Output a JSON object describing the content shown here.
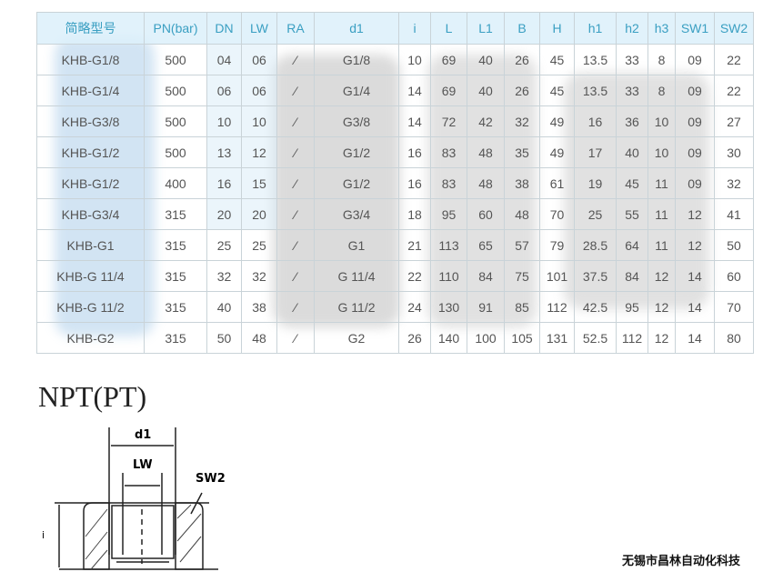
{
  "table": {
    "headers": [
      "简略型号",
      "PN(bar)",
      "DN",
      "LW",
      "RA",
      "d1",
      "i",
      "L",
      "L1",
      "B",
      "H",
      "h1",
      "h2",
      "h3",
      "SW1",
      "SW2"
    ],
    "rows": [
      [
        "KHB-G1/8",
        "500",
        "04",
        "06",
        "⁄",
        "G1/8",
        "10",
        "69",
        "40",
        "26",
        "45",
        "13.5",
        "33",
        "8",
        "09",
        "22"
      ],
      [
        "KHB-G1/4",
        "500",
        "06",
        "06",
        "⁄",
        "G1/4",
        "14",
        "69",
        "40",
        "26",
        "45",
        "13.5",
        "33",
        "8",
        "09",
        "22"
      ],
      [
        "KHB-G3/8",
        "500",
        "10",
        "10",
        "⁄",
        "G3/8",
        "14",
        "72",
        "42",
        "32",
        "49",
        "16",
        "36",
        "10",
        "09",
        "27"
      ],
      [
        "KHB-G1/2",
        "500",
        "13",
        "12",
        "⁄",
        "G1/2",
        "16",
        "83",
        "48",
        "35",
        "49",
        "17",
        "40",
        "10",
        "09",
        "30"
      ],
      [
        "KHB-G1/2",
        "400",
        "16",
        "15",
        "⁄",
        "G1/2",
        "16",
        "83",
        "48",
        "38",
        "61",
        "19",
        "45",
        "11",
        "09",
        "32"
      ],
      [
        "KHB-G3/4",
        "315",
        "20",
        "20",
        "⁄",
        "G3/4",
        "18",
        "95",
        "60",
        "48",
        "70",
        "25",
        "55",
        "11",
        "12",
        "41"
      ],
      [
        "KHB-G1",
        "315",
        "25",
        "25",
        "⁄",
        "G1",
        "21",
        "113",
        "65",
        "57",
        "79",
        "28.5",
        "64",
        "11",
        "12",
        "50"
      ],
      [
        "KHB-G 11/4",
        "315",
        "32",
        "32",
        "⁄",
        "G 11/4",
        "22",
        "110",
        "84",
        "75",
        "101",
        "37.5",
        "84",
        "12",
        "14",
        "60"
      ],
      [
        "KHB-G 11/2",
        "315",
        "40",
        "38",
        "⁄",
        "G 11/2",
        "24",
        "130",
        "91",
        "85",
        "112",
        "42.5",
        "95",
        "12",
        "14",
        "70"
      ],
      [
        "KHB-G2",
        "315",
        "50",
        "48",
        "⁄",
        "G2",
        "26",
        "140",
        "100",
        "105",
        "131",
        "52.5",
        "112",
        "12",
        "14",
        "80"
      ]
    ]
  },
  "section_title": "NPT(PT)",
  "drawing": {
    "labels": {
      "d1": "d1",
      "lw": "LW",
      "sw2": "SW2",
      "i": "i"
    }
  },
  "brand": "无锡市昌林自动化科技"
}
